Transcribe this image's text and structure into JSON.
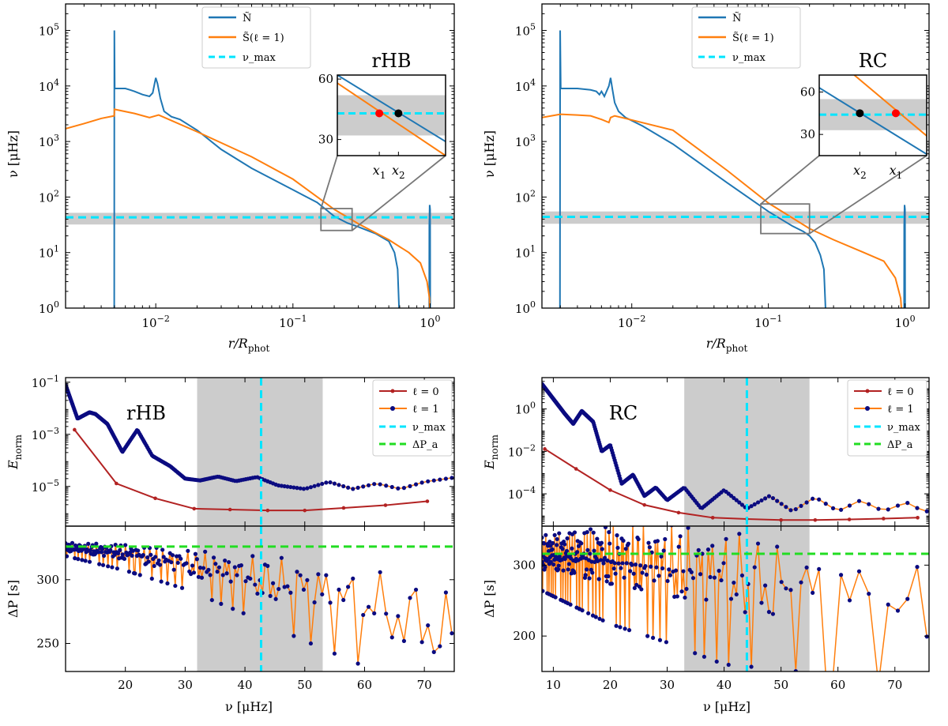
{
  "colors": {
    "N": "#1f77b4",
    "S": "#ff7f0e",
    "numax": "#00e5ff",
    "dPa": "#22dd22",
    "l0": "#b22222",
    "l1_line": "#ff7f0e",
    "l1_marker": "#0b0b80",
    "band": "#cccccc",
    "zoombox": "#777777"
  },
  "chart_data": [
    {
      "id": "rHB-top",
      "type": "line",
      "xscale": "log",
      "yscale": "log",
      "xlim": [
        0.0022,
        1.5
      ],
      "ylim": [
        1,
        300000
      ],
      "xlabel": "r/R",
      "xlabel_sub": "phot",
      "ylabel": "ν [μHz]",
      "xticks": [
        {
          "v": 0.01,
          "base": "10",
          "exp": "−2"
        },
        {
          "v": 0.1,
          "base": "10",
          "exp": "−1"
        },
        {
          "v": 1,
          "base": "10",
          "exp": "0"
        }
      ],
      "yticks": [
        {
          "v": 1,
          "base": "10",
          "exp": "0"
        },
        {
          "v": 10,
          "base": "10",
          "exp": "1"
        },
        {
          "v": 100,
          "base": "10",
          "exp": "2"
        },
        {
          "v": 1000,
          "base": "10",
          "exp": "3"
        },
        {
          "v": 10000,
          "base": "10",
          "exp": "4"
        },
        {
          "v": 100000,
          "base": "10",
          "exp": "5"
        }
      ],
      "numax": 43,
      "band": [
        32,
        52
      ],
      "legend": [
        "Ñ",
        "S̃(ℓ = 1)",
        "ν_max"
      ],
      "series": [
        {
          "name": "N",
          "points": [
            [
              0.00498,
              0.5
            ],
            [
              0.00499,
              100000
            ],
            [
              0.00502,
              9000
            ],
            [
              0.0052,
              9000
            ],
            [
              0.006,
              9000
            ],
            [
              0.0065,
              8500
            ],
            [
              0.007,
              8000
            ],
            [
              0.008,
              7000
            ],
            [
              0.009,
              6500
            ],
            [
              0.0095,
              7500
            ],
            [
              0.0098,
              11000
            ],
            [
              0.01,
              14000
            ],
            [
              0.0103,
              11000
            ],
            [
              0.0108,
              6000
            ],
            [
              0.0115,
              3500
            ],
            [
              0.013,
              2800
            ],
            [
              0.015,
              2500
            ],
            [
              0.02,
              1600
            ],
            [
              0.03,
              720
            ],
            [
              0.05,
              330
            ],
            [
              0.1,
              135
            ],
            [
              0.15,
              80
            ],
            [
              0.2,
              45
            ],
            [
              0.25,
              34
            ],
            [
              0.3,
              29
            ],
            [
              0.4,
              22
            ],
            [
              0.5,
              16
            ],
            [
              0.55,
              10
            ],
            [
              0.58,
              5
            ],
            [
              0.6,
              0.5
            ]
          ]
        },
        {
          "name": "N-surface",
          "points": [
            [
              0.985,
              0.5
            ],
            [
              0.987,
              30
            ],
            [
              0.993,
              72
            ],
            [
              1.0,
              60
            ],
            [
              1.003,
              0.5
            ]
          ]
        },
        {
          "name": "S",
          "points": [
            [
              0.0022,
              1700
            ],
            [
              0.003,
              2100
            ],
            [
              0.004,
              2600
            ],
            [
              0.00498,
              2900
            ],
            [
              0.005,
              3800
            ],
            [
              0.007,
              3200
            ],
            [
              0.009,
              2700
            ],
            [
              0.0105,
              3000
            ],
            [
              0.012,
              2600
            ],
            [
              0.02,
              1500
            ],
            [
              0.05,
              530
            ],
            [
              0.1,
              210
            ],
            [
              0.2,
              60
            ],
            [
              0.3,
              33
            ],
            [
              0.5,
              17
            ],
            [
              0.7,
              10
            ],
            [
              0.85,
              6.5
            ],
            [
              0.95,
              3
            ],
            [
              0.99,
              1.5
            ],
            [
              1.0,
              0.5
            ]
          ]
        }
      ],
      "inset": {
        "title": "rHB",
        "xlim": [
          0.16,
          0.27
        ],
        "ylim": [
          22,
          62
        ],
        "yticks": [
          30,
          60
        ],
        "src_box": [
          [
            0.16,
            0.27
          ],
          [
            25,
            62
          ]
        ],
        "N_line": [
          [
            0.16,
            62
          ],
          [
            0.27,
            29
          ]
        ],
        "S_line": [
          [
            0.16,
            58
          ],
          [
            0.27,
            22
          ]
        ],
        "points": [
          {
            "x": 0.196,
            "y": 43,
            "color": "#ff0000",
            "label": "x",
            "sub": "1"
          },
          {
            "x": 0.215,
            "y": 43,
            "color": "#000000",
            "label": "x",
            "sub": "2"
          }
        ]
      }
    },
    {
      "id": "RC-top",
      "type": "line",
      "xscale": "log",
      "yscale": "log",
      "xlim": [
        0.0022,
        1.5
      ],
      "ylim": [
        1,
        300000
      ],
      "xlabel": "r/R",
      "xlabel_sub": "phot",
      "ylabel": "ν [μHz]",
      "xticks": [
        {
          "v": 0.01,
          "base": "10",
          "exp": "−2"
        },
        {
          "v": 0.1,
          "base": "10",
          "exp": "−1"
        },
        {
          "v": 1,
          "base": "10",
          "exp": "0"
        }
      ],
      "yticks": [
        {
          "v": 1,
          "base": "10",
          "exp": "0"
        },
        {
          "v": 10,
          "base": "10",
          "exp": "1"
        },
        {
          "v": 100,
          "base": "10",
          "exp": "2"
        },
        {
          "v": 1000,
          "base": "10",
          "exp": "3"
        },
        {
          "v": 10000,
          "base": "10",
          "exp": "4"
        },
        {
          "v": 100000,
          "base": "10",
          "exp": "5"
        }
      ],
      "numax": 44,
      "band": [
        33,
        55
      ],
      "legend": [
        "Ñ",
        "S̃(ℓ = 1)",
        "ν_max"
      ],
      "series": [
        {
          "name": "N",
          "points": [
            [
              0.00298,
              0.5
            ],
            [
              0.00299,
              100000
            ],
            [
              0.00302,
              9000
            ],
            [
              0.004,
              9000
            ],
            [
              0.005,
              8500
            ],
            [
              0.0055,
              8000
            ],
            [
              0.0058,
              7000
            ],
            [
              0.006,
              8000
            ],
            [
              0.0063,
              6500
            ],
            [
              0.0068,
              10000
            ],
            [
              0.007,
              14000
            ],
            [
              0.0072,
              9000
            ],
            [
              0.0075,
              5000
            ],
            [
              0.008,
              3500
            ],
            [
              0.009,
              2700
            ],
            [
              0.012,
              1900
            ],
            [
              0.02,
              900
            ],
            [
              0.05,
              180
            ],
            [
              0.1,
              55
            ],
            [
              0.15,
              30
            ],
            [
              0.18,
              24
            ],
            [
              0.2,
              20
            ],
            [
              0.22,
              15
            ],
            [
              0.24,
              9
            ],
            [
              0.255,
              5
            ],
            [
              0.265,
              0.5
            ]
          ]
        },
        {
          "name": "N-surface",
          "points": [
            [
              0.985,
              0.5
            ],
            [
              0.987,
              30
            ],
            [
              0.993,
              72
            ],
            [
              1.0,
              60
            ],
            [
              1.003,
              0.5
            ]
          ]
        },
        {
          "name": "S",
          "points": [
            [
              0.0022,
              2700
            ],
            [
              0.003,
              3100
            ],
            [
              0.004,
              3000
            ],
            [
              0.005,
              2900
            ],
            [
              0.006,
              2500
            ],
            [
              0.0068,
              2200
            ],
            [
              0.007,
              2700
            ],
            [
              0.0075,
              2900
            ],
            [
              0.009,
              2600
            ],
            [
              0.02,
              1600
            ],
            [
              0.05,
              300
            ],
            [
              0.1,
              78
            ],
            [
              0.2,
              27
            ],
            [
              0.3,
              17
            ],
            [
              0.5,
              10
            ],
            [
              0.7,
              7
            ],
            [
              0.85,
              3.5
            ],
            [
              0.93,
              1.5
            ],
            [
              0.96,
              0.5
            ]
          ]
        }
      ],
      "inset": {
        "title": "RC",
        "xlim": [
          0.088,
          0.2
        ],
        "ylim": [
          15,
          72
        ],
        "yticks": [
          30,
          60
        ],
        "src_box": [
          [
            0.088,
            0.2
          ],
          [
            22,
            75
          ]
        ],
        "N_line": [
          [
            0.088,
            63
          ],
          [
            0.2,
            16
          ]
        ],
        "S_line": [
          [
            0.115,
            72
          ],
          [
            0.2,
            29
          ]
        ],
        "points": [
          {
            "x": 0.12,
            "y": 45,
            "color": "#000000",
            "label": "x",
            "sub": "2"
          },
          {
            "x": 0.158,
            "y": 45,
            "color": "#ff0000",
            "label": "x",
            "sub": "1"
          }
        ]
      }
    },
    {
      "id": "rHB-energy",
      "type": "line",
      "yscale": "log",
      "title": "rHB",
      "xlim": [
        10,
        75
      ],
      "ylim": [
        3e-07,
        0.15
      ],
      "ylabel": "E",
      "ylabel_sub": "norm",
      "yticks": [
        {
          "v": 0.1,
          "base": "10",
          "exp": "−1"
        },
        {
          "v": 0.001,
          "base": "10",
          "exp": "−3"
        },
        {
          "v": 1e-05,
          "base": "10",
          "exp": "−5"
        }
      ],
      "numax": 42.7,
      "band": [
        32,
        53
      ],
      "legend": [
        "ℓ = 0",
        "ℓ = 1",
        "ν_max",
        "ΔP_a"
      ],
      "l0": {
        "x": [
          11.5,
          18.5,
          25,
          31.5,
          37.5,
          43.8,
          50,
          56.5,
          63.5,
          70.5
        ],
        "y": [
          0.0015,
          1.3e-05,
          3.5e-06,
          1.4e-06,
          1.3e-06,
          1.2e-06,
          1.2e-06,
          1.5e-06,
          1.9e-06,
          2.7e-06
        ]
      },
      "l1_env": {
        "x": [
          10,
          12,
          14,
          15,
          17,
          19.5,
          22,
          24.5,
          27.5,
          30,
          32.5,
          35.5,
          38.5,
          42,
          45.5,
          50,
          54,
          58,
          62,
          66,
          70,
          75
        ],
        "y": [
          0.08,
          0.004,
          0.007,
          0.006,
          0.0025,
          0.00021,
          0.0015,
          0.00015,
          6e-05,
          2e-05,
          1.7e-05,
          2.4e-05,
          1.6e-05,
          2.3e-05,
          1.1e-05,
          8e-06,
          1.5e-05,
          8e-06,
          1.3e-05,
          8e-06,
          1.5e-05,
          2.2e-05
        ]
      }
    },
    {
      "id": "rHB-period",
      "type": "scatter",
      "xlim": [
        10,
        75
      ],
      "ylim": [
        228,
        342
      ],
      "xlabel": "ν [μHz]",
      "ylabel": "ΔP [s]",
      "xticks": [
        20,
        30,
        40,
        50,
        60,
        70
      ],
      "yticks": [
        250,
        300
      ],
      "numax": 42.7,
      "band": [
        32,
        53
      ],
      "dPa": 326,
      "start_x": 10,
      "spacing_range": [
        0.1,
        1.0
      ],
      "trend": {
        "x": [
          10,
          20,
          30,
          40,
          50,
          60,
          70,
          75
        ],
        "y": [
          325,
          320,
          312,
          302,
          292,
          280,
          265,
          255
        ]
      },
      "amp": {
        "x": [
          10,
          20,
          30,
          40,
          50,
          60,
          70,
          75
        ],
        "y": [
          4,
          8,
          12,
          18,
          25,
          30,
          35,
          35
        ]
      }
    },
    {
      "id": "RC-energy",
      "type": "line",
      "yscale": "log",
      "title": "RC",
      "xlim": [
        8,
        76
      ],
      "ylim": [
        3e-06,
        30
      ],
      "ylabel": "E",
      "ylabel_sub": "norm",
      "yticks": [
        {
          "v": 1,
          "base": "10",
          "exp": "0"
        },
        {
          "v": 0.01,
          "base": "10",
          "exp": "−2"
        },
        {
          "v": 0.0001,
          "base": "10",
          "exp": "−4"
        }
      ],
      "numax": 44,
      "band": [
        33,
        55
      ],
      "legend": [
        "ℓ = 0",
        "ℓ = 1",
        "ν_max",
        "ΔP_a"
      ],
      "l0": {
        "x": [
          8.5,
          14,
          20,
          26,
          32,
          38,
          44,
          50,
          56,
          62,
          68,
          74
        ],
        "y": [
          0.013,
          0.0015,
          0.00015,
          3e-05,
          1.3e-05,
          7.5e-06,
          6.5e-06,
          5.8e-06,
          5.8e-06,
          6.2e-06,
          6.8e-06,
          7.5e-06
        ]
      },
      "l1_env": {
        "x": [
          8,
          10,
          12,
          13.5,
          15,
          17,
          18.5,
          20,
          22,
          24,
          26,
          28,
          30,
          33,
          36,
          40,
          44,
          48,
          52,
          56,
          60,
          64,
          68,
          72,
          75
        ],
        "y": [
          15,
          3,
          0.6,
          0.2,
          0.8,
          0.25,
          0.01,
          0.02,
          0.0003,
          0.0008,
          8e-05,
          0.0002,
          5e-05,
          0.0002,
          2e-05,
          0.00015,
          2e-05,
          8e-05,
          1.5e-05,
          7e-05,
          1.5e-05,
          5e-05,
          1.5e-05,
          4e-05,
          1.5e-05
        ]
      }
    },
    {
      "id": "RC-period",
      "type": "scatter",
      "xlim": [
        8,
        76
      ],
      "ylim": [
        150,
        355
      ],
      "xlabel": "ν [μHz]",
      "ylabel": "ΔP [s]",
      "xticks": [
        10,
        20,
        30,
        40,
        50,
        60,
        70
      ],
      "yticks": [
        200,
        300
      ],
      "numax": 44,
      "band": [
        33,
        55
      ],
      "dPa": 316,
      "start_x": 8,
      "spacing_range": [
        0.06,
        1.7
      ],
      "trend": {
        "x": [
          8,
          20,
          30,
          40,
          50,
          60,
          70,
          76
        ],
        "y": [
          312,
          305,
          295,
          280,
          265,
          255,
          240,
          235
        ]
      },
      "amp": {
        "x": [
          8,
          20,
          30,
          40,
          50,
          60,
          70,
          76
        ],
        "y": [
          30,
          55,
          65,
          75,
          70,
          70,
          70,
          70
        ]
      }
    }
  ]
}
